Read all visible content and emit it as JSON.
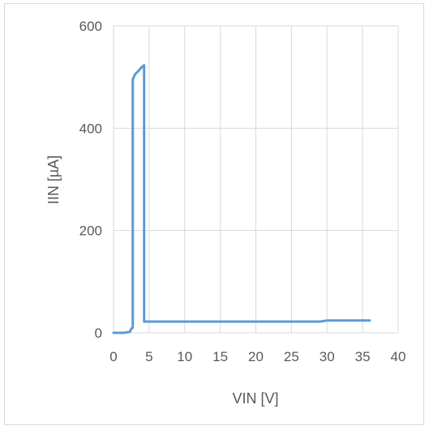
{
  "chart_data": {
    "type": "scatter",
    "title": "",
    "xlabel": "VIN [V]",
    "ylabel": "IIN [µA]",
    "xlim": [
      0,
      40
    ],
    "ylim": [
      0,
      600
    ],
    "x_ticks": [
      0,
      5,
      10,
      15,
      20,
      25,
      30,
      35,
      40
    ],
    "y_ticks": [
      0,
      200,
      400,
      600
    ],
    "grid": true,
    "legend": "none",
    "series": [
      {
        "color": "#5b9bd5",
        "points": [
          [
            0,
            0
          ],
          [
            1.5,
            0
          ],
          [
            2.3,
            2
          ],
          [
            2.5,
            8
          ],
          [
            2.7,
            10
          ],
          [
            2.7,
            495
          ],
          [
            3.0,
            505
          ],
          [
            3.5,
            512
          ],
          [
            4.0,
            520
          ],
          [
            4.3,
            523
          ],
          [
            4.3,
            22
          ],
          [
            10,
            22
          ],
          [
            20,
            22
          ],
          [
            29,
            22
          ],
          [
            30,
            24
          ],
          [
            36,
            24
          ]
        ]
      }
    ]
  }
}
